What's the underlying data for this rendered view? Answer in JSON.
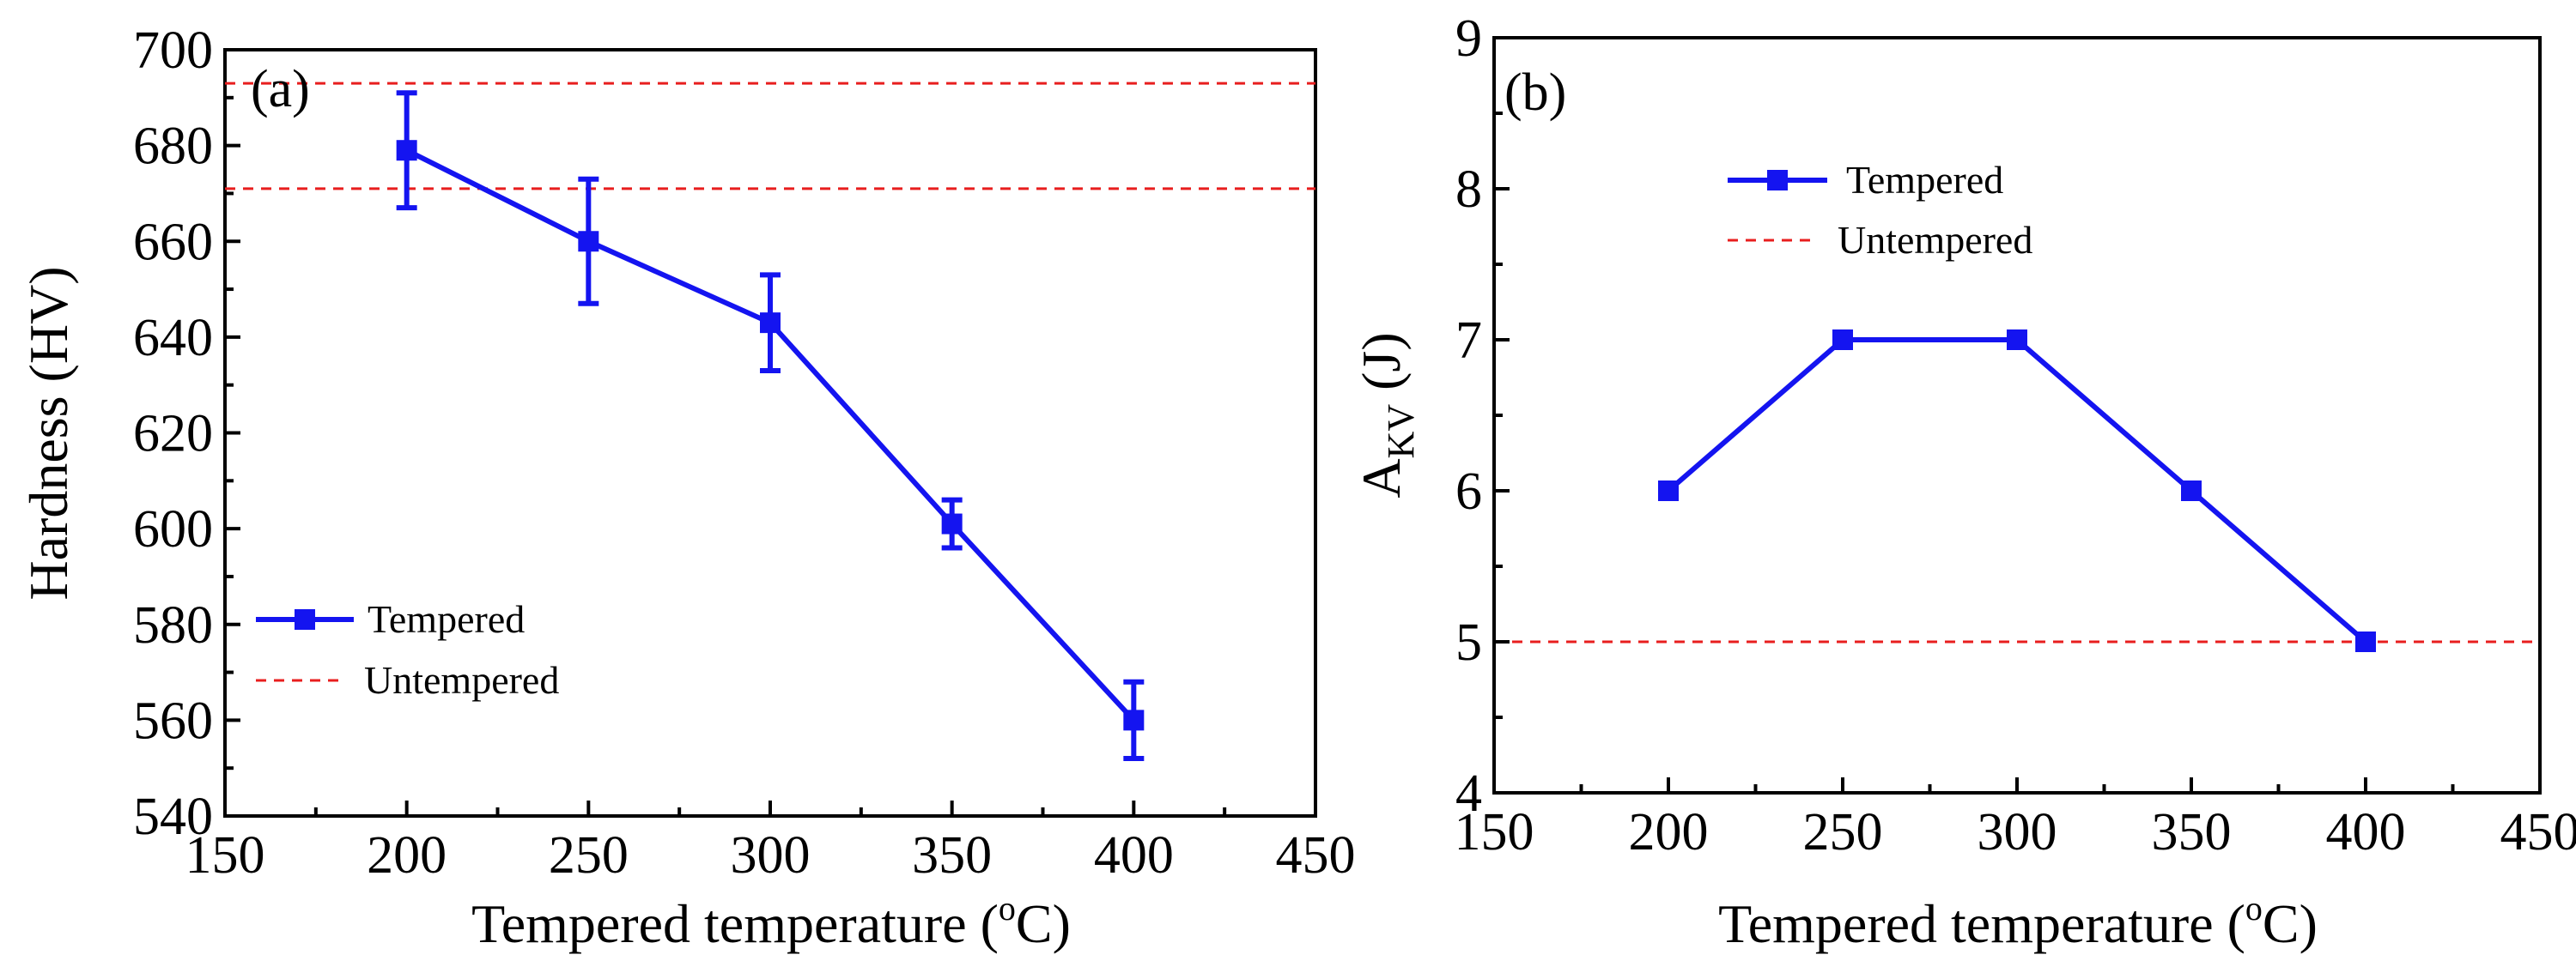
{
  "colors": {
    "series": "#1414f0",
    "reference": "#e81e1e"
  },
  "chart_data": [
    {
      "panel_label": "(a)",
      "type": "line",
      "xlabel": "Tempered temperature (",
      "xlabel_sup": "o",
      "xlabel_tail": "C)",
      "ylabel": "Hardness (HV)",
      "xlim": [
        150,
        450
      ],
      "ylim": [
        540,
        700
      ],
      "xticks": [
        150,
        200,
        250,
        300,
        350,
        400,
        450
      ],
      "yticks": [
        540,
        560,
        580,
        600,
        620,
        640,
        660,
        680,
        700
      ],
      "legend_position": "lower-left",
      "series": [
        {
          "name": "Tempered",
          "x": [
            200,
            250,
            300,
            350,
            400
          ],
          "values": [
            679,
            660,
            643,
            601,
            560
          ],
          "error": [
            12,
            13,
            10,
            5,
            8
          ]
        }
      ],
      "reference_lines": {
        "name": "Untempered",
        "values": [
          693,
          671
        ]
      }
    },
    {
      "panel_label": "(b)",
      "type": "line",
      "xlabel": "Tempered temperature (",
      "xlabel_sup": "o",
      "xlabel_tail": "C)",
      "ylabel_main": "A",
      "ylabel_sub": "KV",
      "ylabel_tail": " (J)",
      "xlim": [
        150,
        450
      ],
      "ylim": [
        4,
        9
      ],
      "xticks": [
        150,
        200,
        250,
        300,
        350,
        400,
        450
      ],
      "yticks": [
        4,
        5,
        6,
        7,
        8,
        9
      ],
      "legend_position": "upper-left",
      "series": [
        {
          "name": "Tempered",
          "x": [
            200,
            250,
            300,
            350,
            400
          ],
          "values": [
            6,
            7,
            7,
            6,
            5
          ]
        }
      ],
      "reference_lines": {
        "name": "Untempered",
        "values": [
          5
        ]
      }
    }
  ]
}
